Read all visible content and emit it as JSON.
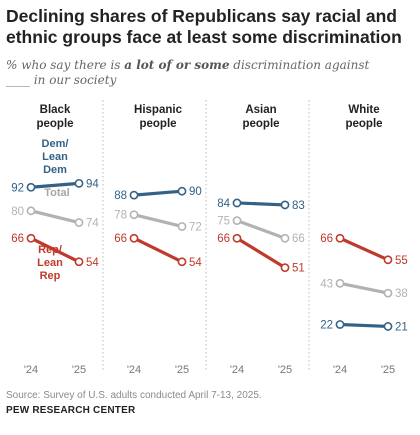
{
  "title": "Declining shares of Republicans say racial and ethnic groups face at least some discrimination",
  "subtitle": {
    "before": "% who say there is ",
    "emphasis": "a lot of or some",
    "after": " discrimination against ____ in our society"
  },
  "source": "Source: Survey of U.S. adults conducted April 7-13, 2025.",
  "organization": "PEW RESEARCH CENTER",
  "colors": {
    "dem": "#346287",
    "total": "#b2b2b2",
    "rep": "#c0392b",
    "divider": "#bdbdbd",
    "text": "#222222",
    "muted": "#777777"
  },
  "chart_data": {
    "type": "line",
    "x": [
      "'24",
      "'25"
    ],
    "ylim": [
      0,
      100
    ],
    "panels": [
      {
        "title": "Black people",
        "series": [
          {
            "name": "Dem/ Lean Dem",
            "key": "dem",
            "values": [
              92,
              94
            ]
          },
          {
            "name": "Total",
            "key": "total",
            "values": [
              80,
              74
            ]
          },
          {
            "name": "Rep/ Lean Rep",
            "key": "rep",
            "values": [
              66,
              54
            ]
          }
        ]
      },
      {
        "title": "Hispanic people",
        "series": [
          {
            "key": "dem",
            "values": [
              88,
              90
            ]
          },
          {
            "key": "total",
            "values": [
              78,
              72
            ]
          },
          {
            "key": "rep",
            "values": [
              66,
              54
            ]
          }
        ]
      },
      {
        "title": "Asian people",
        "series": [
          {
            "key": "dem",
            "values": [
              84,
              83
            ]
          },
          {
            "key": "total",
            "values": [
              75,
              66
            ]
          },
          {
            "key": "rep",
            "values": [
              66,
              51
            ]
          }
        ]
      },
      {
        "title": "White people",
        "series": [
          {
            "key": "rep",
            "values": [
              66,
              55
            ]
          },
          {
            "key": "total",
            "values": [
              43,
              38
            ]
          },
          {
            "key": "dem",
            "values": [
              22,
              21
            ]
          }
        ]
      }
    ]
  }
}
